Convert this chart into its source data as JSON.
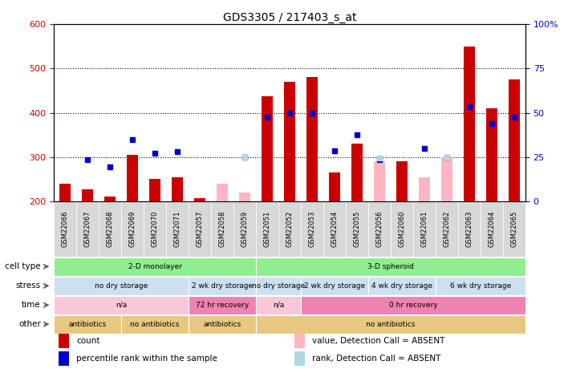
{
  "title": "GDS3305 / 217403_s_at",
  "samples": [
    "GSM22066",
    "GSM22067",
    "GSM22068",
    "GSM22069",
    "GSM22070",
    "GSM22071",
    "GSM22057",
    "GSM22058",
    "GSM22059",
    "GSM22051",
    "GSM22052",
    "GSM22053",
    "GSM22054",
    "GSM22055",
    "GSM22056",
    "GSM22060",
    "GSM22061",
    "GSM22062",
    "GSM22063",
    "GSM22064",
    "GSM22065"
  ],
  "red_values": [
    240,
    228,
    210,
    305,
    250,
    255,
    207,
    null,
    null,
    438,
    470,
    480,
    265,
    330,
    null,
    290,
    null,
    null,
    550,
    410,
    475
  ],
  "pink_values": [
    null,
    null,
    null,
    null,
    null,
    null,
    null,
    240,
    220,
    null,
    null,
    null,
    null,
    null,
    290,
    null,
    255,
    300,
    null,
    null,
    null
  ],
  "blue_values": [
    null,
    295,
    278,
    340,
    308,
    312,
    null,
    null,
    300,
    390,
    400,
    400,
    315,
    350,
    295,
    null,
    320,
    300,
    413,
    375,
    390
  ],
  "lightblue_values": [
    null,
    null,
    null,
    null,
    null,
    null,
    null,
    null,
    300,
    null,
    null,
    null,
    null,
    null,
    298,
    null,
    null,
    300,
    null,
    null,
    null
  ],
  "ylim_left": [
    200,
    600
  ],
  "ylim_right": [
    0,
    100
  ],
  "yticks_left": [
    200,
    300,
    400,
    500,
    600
  ],
  "yticks_right": [
    0,
    25,
    50,
    75,
    100
  ],
  "left_color": "#cc0000",
  "right_color": "#0000cc",
  "cell_type_row": {
    "label": "cell type",
    "segments": [
      {
        "text": "2-D monolayer",
        "start": 0,
        "end": 8,
        "color": "#90ee90"
      },
      {
        "text": "3-D spheroid",
        "start": 9,
        "end": 20,
        "color": "#90ee90"
      }
    ]
  },
  "stress_row": {
    "label": "stress",
    "segments": [
      {
        "text": "no dry storage",
        "start": 0,
        "end": 5,
        "color": "#cce0f0"
      },
      {
        "text": "2 wk dry storage",
        "start": 6,
        "end": 8,
        "color": "#cce0f0"
      },
      {
        "text": "no dry storage",
        "start": 9,
        "end": 10,
        "color": "#cce0f0"
      },
      {
        "text": "2 wk dry storage",
        "start": 11,
        "end": 13,
        "color": "#cce0f0"
      },
      {
        "text": "4 wk dry storage",
        "start": 14,
        "end": 16,
        "color": "#cce0f0"
      },
      {
        "text": "6 wk dry storage",
        "start": 17,
        "end": 20,
        "color": "#cce0f0"
      }
    ]
  },
  "time_row": {
    "label": "time",
    "segments": [
      {
        "text": "n/a",
        "start": 0,
        "end": 5,
        "color": "#f8c8d8"
      },
      {
        "text": "72 hr recovery",
        "start": 6,
        "end": 8,
        "color": "#ee82b0"
      },
      {
        "text": "n/a",
        "start": 9,
        "end": 10,
        "color": "#f8c8d8"
      },
      {
        "text": "0 hr recovery",
        "start": 11,
        "end": 20,
        "color": "#ee82b0"
      }
    ]
  },
  "other_row": {
    "label": "other",
    "segments": [
      {
        "text": "antibiotics",
        "start": 0,
        "end": 2,
        "color": "#e8c880"
      },
      {
        "text": "no antibiotics",
        "start": 3,
        "end": 5,
        "color": "#e8c880"
      },
      {
        "text": "antibiotics",
        "start": 6,
        "end": 8,
        "color": "#e8c880"
      },
      {
        "text": "no antibiotics",
        "start": 9,
        "end": 20,
        "color": "#e8c880"
      }
    ]
  },
  "legend_items": [
    {
      "color": "#cc0000",
      "label": "count"
    },
    {
      "color": "#0000cc",
      "label": "percentile rank within the sample"
    },
    {
      "color": "#ffb6c1",
      "label": "value, Detection Call = ABSENT"
    },
    {
      "color": "#add8e6",
      "label": "rank, Detection Call = ABSENT"
    }
  ]
}
